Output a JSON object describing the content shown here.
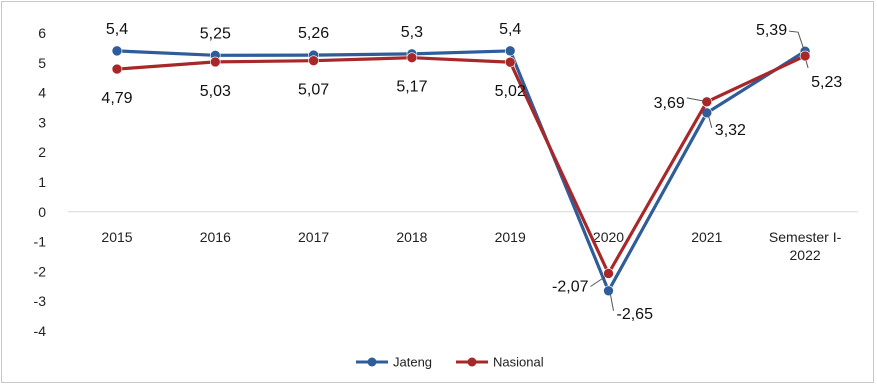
{
  "chart_data": {
    "type": "line",
    "title": "",
    "xlabel": "",
    "ylabel": "",
    "categories": [
      "2015",
      "2016",
      "2017",
      "2018",
      "2019",
      "2020",
      "2021",
      "Semester I-\n2022"
    ],
    "ylim": [
      -4,
      6
    ],
    "yticks": [
      6,
      5,
      4,
      3,
      2,
      1,
      0,
      -1,
      -2,
      -3,
      -4
    ],
    "grid": false,
    "legend": "bottom",
    "series": [
      {
        "name": "Jateng",
        "color": "#2e5d9a",
        "values": [
          5.4,
          5.25,
          5.26,
          5.3,
          5.4,
          -2.65,
          3.32,
          5.39
        ],
        "labels": [
          "5,4",
          "5,25",
          "5,26",
          "5,3",
          "5,4",
          "-2,65",
          "3,32",
          "5,39"
        ]
      },
      {
        "name": "Nasional",
        "color": "#a8282a",
        "values": [
          4.79,
          5.03,
          5.07,
          5.17,
          5.02,
          -2.07,
          3.69,
          5.23
        ],
        "labels": [
          "4,79",
          "5,03",
          "5,07",
          "5,17",
          "5,02",
          "-2,07",
          "3,69",
          "5,23"
        ]
      }
    ]
  }
}
